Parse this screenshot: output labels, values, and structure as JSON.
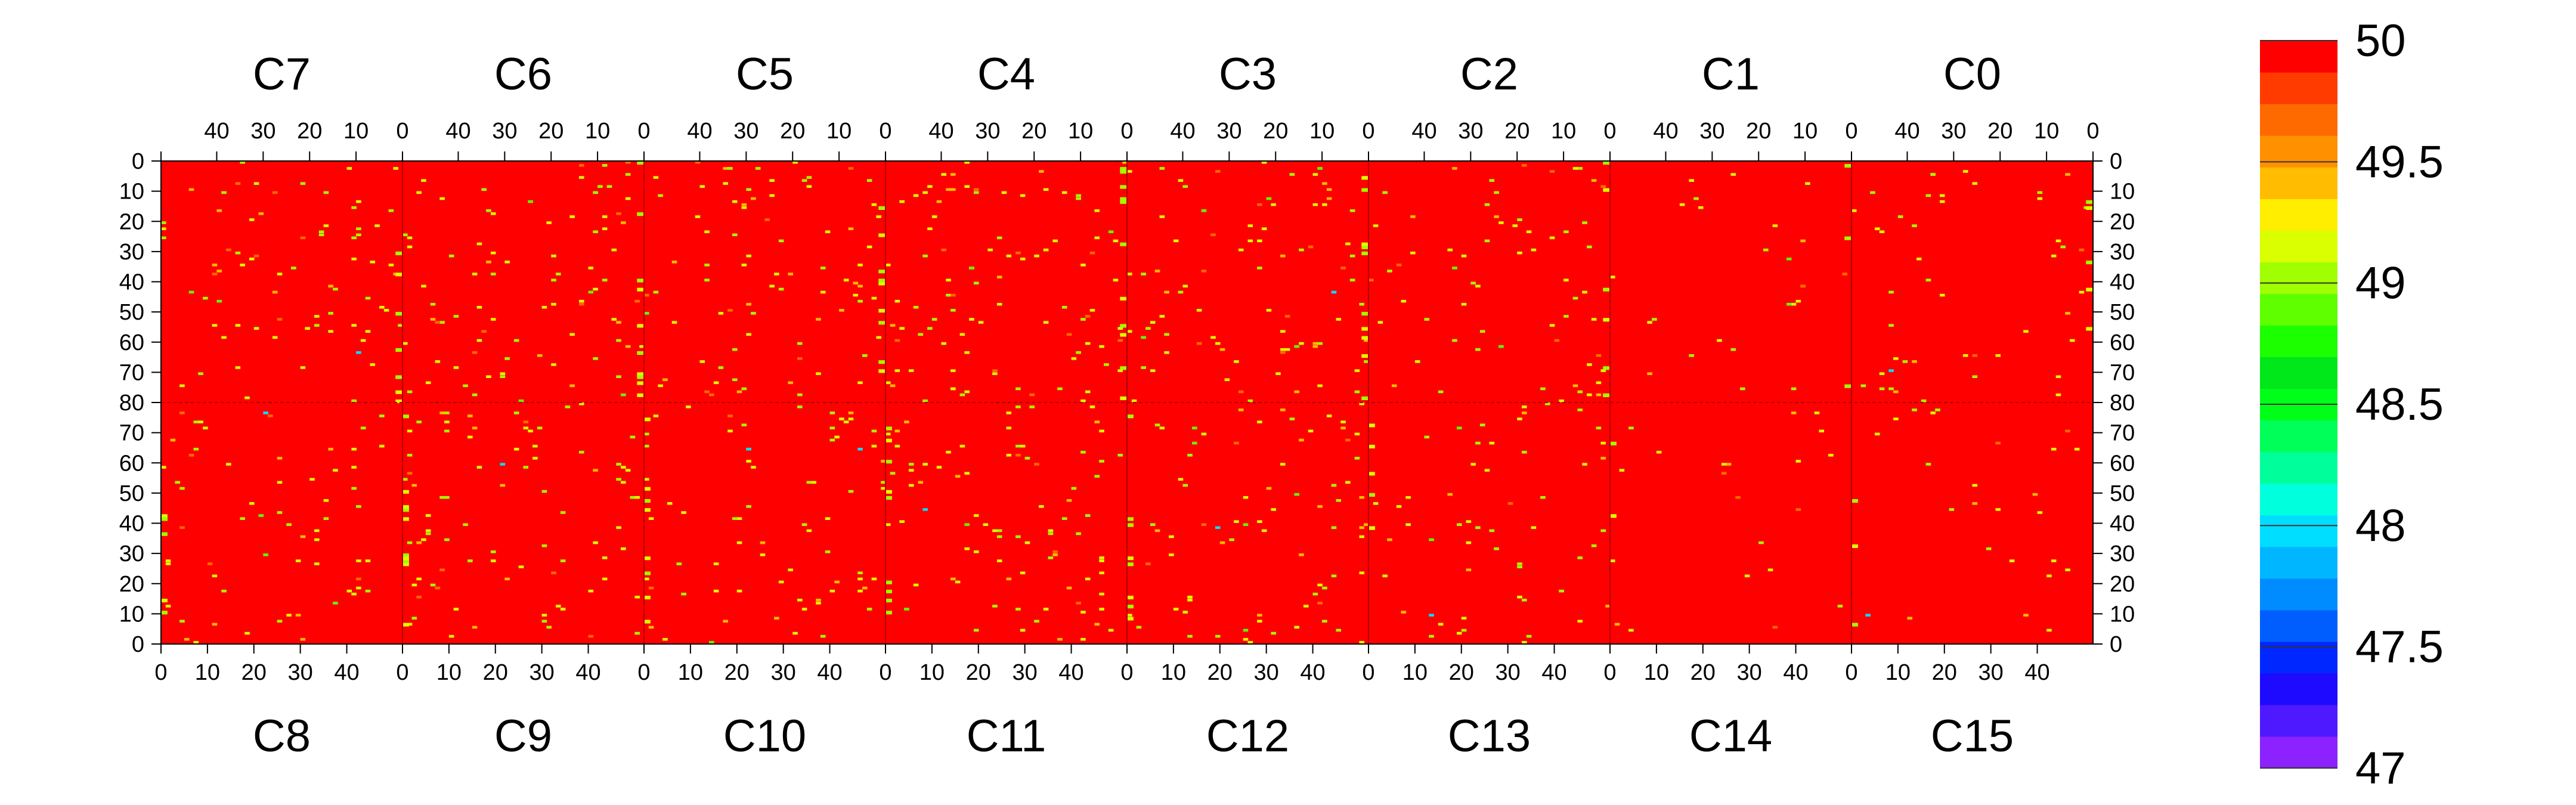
{
  "chart_data": {
    "type": "heatmap",
    "title": "",
    "xlabel": "",
    "ylabel": "",
    "grid": false,
    "zlim": [
      47,
      50
    ],
    "background_value": 50,
    "chips_top": [
      "C7",
      "C6",
      "C5",
      "C4",
      "C3",
      "C2",
      "C1",
      "C0"
    ],
    "chips_bottom": [
      "C8",
      "C9",
      "C10",
      "C11",
      "C12",
      "C13",
      "C14",
      "C15"
    ],
    "x_ticks_top": [
      "40",
      "30",
      "20",
      "10",
      "0"
    ],
    "x_ticks_bottom": [
      "0",
      "10",
      "20",
      "30",
      "40"
    ],
    "y_ticks_top_half": [
      "0",
      "10",
      "20",
      "30",
      "40",
      "50",
      "60",
      "70",
      "80"
    ],
    "y_ticks_bottom_half": [
      "70",
      "60",
      "50",
      "40",
      "30",
      "20",
      "10",
      "0"
    ],
    "colorbar": {
      "ticks": [
        "50",
        "49.5",
        "49",
        "48.5",
        "48",
        "47.5",
        "47"
      ],
      "levels": [
        "#8B22FF",
        "#4F19FF",
        "#1E0AFF",
        "#0027FF",
        "#005EFF",
        "#008CFF",
        "#00B7FF",
        "#00DEFF",
        "#00FFDD",
        "#00FF9B",
        "#00FF59",
        "#00FF18",
        "#00E71A",
        "#1CFF00",
        "#5FFF00",
        "#A0FF00",
        "#D9FF00",
        "#FFEE00",
        "#FFBC00",
        "#FF9100",
        "#FF6A00",
        "#FF3B00",
        "#FF0000"
      ]
    },
    "hot_cells_note_values": [
      49.8,
      49.6,
      49.2,
      49.0,
      48.6,
      48.1
    ]
  }
}
